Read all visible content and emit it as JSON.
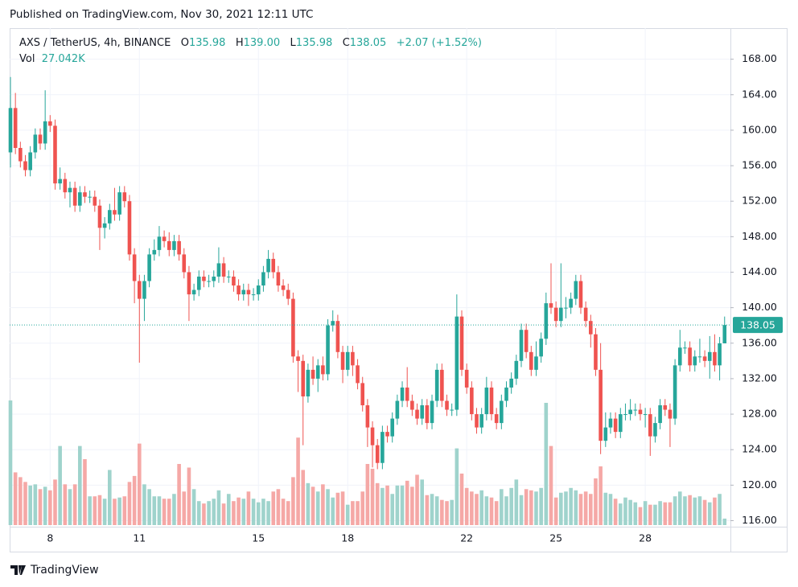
{
  "chart_data": {
    "type": "candlestick",
    "published": "Published on TradingView.com, Nov 30, 2021 12:11 UTC",
    "symbol": "AXS / TetherUS, 4h, BINANCE",
    "ohlc_prefixes": [
      "O",
      "H",
      "L",
      "C"
    ],
    "legend_values": [
      "135.98",
      "139.00",
      "135.98",
      "138.05"
    ],
    "change": "+2.07 (+1.52%)",
    "volume_title": "Vol",
    "volume_label": "27.042K",
    "logo": "TradingView",
    "up_color": "#26a69a",
    "down_color": "#ef5350",
    "volume_up_color": "#9fd3cc",
    "volume_down_color": "#f5a8a6",
    "grid": true,
    "ylim": [
      115.5,
      171.5
    ],
    "yticks": [
      {
        "value": 116,
        "label": "116.00"
      },
      {
        "value": 120,
        "label": "120.00"
      },
      {
        "value": 124,
        "label": "124.00"
      },
      {
        "value": 128,
        "label": "128.00"
      },
      {
        "value": 132,
        "label": "132.00"
      },
      {
        "value": 136,
        "label": "136.00"
      },
      {
        "value": 140,
        "label": "140.00"
      },
      {
        "value": 144,
        "label": "144.00"
      },
      {
        "value": 148,
        "label": "148.00"
      },
      {
        "value": 152,
        "label": "152.00"
      },
      {
        "value": 156,
        "label": "156.00"
      },
      {
        "value": 160,
        "label": "160.00"
      },
      {
        "value": 164,
        "label": "164.00"
      },
      {
        "value": 168,
        "label": "168.00"
      }
    ],
    "categories": [
      null,
      null,
      null,
      null,
      null,
      null,
      null,
      null,
      "8",
      null,
      null,
      null,
      null,
      null,
      null,
      null,
      null,
      null,
      null,
      null,
      null,
      null,
      null,
      null,
      null,
      null,
      "11",
      null,
      null,
      null,
      null,
      null,
      null,
      null,
      null,
      null,
      null,
      null,
      null,
      null,
      null,
      null,
      null,
      null,
      null,
      null,
      null,
      null,
      null,
      null,
      "15",
      null,
      null,
      null,
      null,
      null,
      null,
      null,
      null,
      null,
      null,
      null,
      null,
      null,
      null,
      null,
      null,
      null,
      "18",
      null,
      null,
      null,
      null,
      null,
      null,
      null,
      null,
      null,
      null,
      null,
      null,
      null,
      null,
      null,
      null,
      null,
      null,
      null,
      null,
      null,
      null,
      null,
      "22",
      null,
      null,
      null,
      null,
      null,
      null,
      null,
      null,
      null,
      null,
      null,
      null,
      null,
      null,
      null,
      null,
      null,
      "25",
      null,
      null,
      null,
      null,
      null,
      null,
      null,
      null,
      null,
      null,
      null,
      null,
      null,
      null,
      null,
      null,
      null,
      "28",
      null,
      null,
      null,
      null,
      null,
      null,
      null,
      null,
      null,
      null,
      null,
      null,
      null,
      null,
      null,
      null
    ],
    "open": [
      157.5,
      162.5,
      158,
      156.5,
      155.5,
      157.5,
      159.5,
      158.5,
      161,
      160.5,
      154,
      154.5,
      153,
      153.5,
      151.5,
      153,
      152.5,
      152.5,
      151.5,
      149,
      149.5,
      151,
      150.5,
      153,
      152,
      146,
      143,
      141,
      143,
      146,
      146.5,
      148,
      147.5,
      146.5,
      147.5,
      146,
      144,
      141.5,
      142,
      143.5,
      143,
      143,
      143.5,
      145,
      143.5,
      143.5,
      142.5,
      141.5,
      142,
      141.5,
      141.5,
      142.5,
      144,
      145.5,
      144,
      142.5,
      142,
      141,
      134.5,
      134,
      130,
      133,
      132,
      133.5,
      132.5,
      138,
      138.5,
      135,
      133,
      135,
      133.5,
      131.5,
      129,
      126.5,
      124.5,
      122.5,
      126,
      125.5,
      127.5,
      129.5,
      131,
      129.5,
      128.5,
      127.5,
      129,
      127,
      129.5,
      133,
      129.5,
      128.5,
      128.5,
      139,
      133,
      131,
      128,
      126.5,
      128,
      131,
      128,
      127,
      129.5,
      131,
      132,
      134,
      137.5,
      135,
      133,
      134.5,
      136.5,
      140.5,
      140,
      138.5,
      140,
      140,
      141,
      143,
      140,
      138.5,
      137,
      133,
      125,
      126.5,
      127.5,
      126,
      128,
      128,
      128.5,
      128.5,
      128,
      128,
      125.5,
      127,
      129,
      128.5,
      127.5,
      133.5,
      135.5,
      135.5,
      133.5,
      134.5,
      134.5,
      134,
      135,
      133.5,
      135.98
    ],
    "high": [
      166,
      164.2,
      158.7,
      157.2,
      158.2,
      160.2,
      160.2,
      164.5,
      161.7,
      161.2,
      155.8,
      155.2,
      154.2,
      154.2,
      153.7,
      153.7,
      153.2,
      153.2,
      152.2,
      150.2,
      151.7,
      153.5,
      153.7,
      153.7,
      152.7,
      146.7,
      143.7,
      143.7,
      146.7,
      147.7,
      149.2,
      148.7,
      148.5,
      148.2,
      148.2,
      146.7,
      144.7,
      142.7,
      144.2,
      144.2,
      143.7,
      144.2,
      146.8,
      145.7,
      144.2,
      144.2,
      143.2,
      142.7,
      142.7,
      142.2,
      143.2,
      144.7,
      146.5,
      146.2,
      144.7,
      143.2,
      142.7,
      141.7,
      135.2,
      134.7,
      133.7,
      134.5,
      134.2,
      134.5,
      138.7,
      139.7,
      139.2,
      135.7,
      135.7,
      135.7,
      134.2,
      132.2,
      129.7,
      127.2,
      125.2,
      126.7,
      126.7,
      128.2,
      130.2,
      131.7,
      133.3,
      130.2,
      129.2,
      129.7,
      129.7,
      130.2,
      133.7,
      133.7,
      130.2,
      129.2,
      141.5,
      139.7,
      133.7,
      131.7,
      128.7,
      128.7,
      132.2,
      131.7,
      128.7,
      130.2,
      131.7,
      132.7,
      134.7,
      138.2,
      138.2,
      135.7,
      136.2,
      137.2,
      141.7,
      145,
      140.7,
      145,
      141.2,
      141.7,
      143.7,
      143.7,
      140.7,
      139.2,
      137.7,
      136,
      128.2,
      128.2,
      128.2,
      128.7,
      129.2,
      129.7,
      129.2,
      129.2,
      128.7,
      128.7,
      127.7,
      129.7,
      129.7,
      129.2,
      134.2,
      137.5,
      136.2,
      136.2,
      135.2,
      136.5,
      135.2,
      136.8,
      137,
      136.7,
      139
    ],
    "low": [
      155.8,
      157.3,
      155.8,
      154.8,
      154.8,
      156.8,
      157.8,
      157.8,
      159.8,
      153.3,
      153.3,
      152.3,
      151.3,
      150.8,
      150.8,
      151.8,
      151.8,
      150.8,
      146.5,
      147.8,
      148.8,
      149.8,
      149.8,
      151.3,
      145.3,
      140.5,
      133.8,
      138.5,
      142.3,
      145.3,
      145.8,
      146.8,
      145.8,
      145.8,
      145.3,
      143.3,
      138.5,
      140.8,
      141.3,
      142.3,
      142.3,
      142.3,
      142.8,
      142.8,
      142.8,
      141.8,
      140.8,
      140.8,
      140.2,
      140.8,
      140.8,
      141.8,
      143.3,
      143.3,
      141.8,
      141.3,
      140.3,
      133.8,
      130.5,
      124.5,
      129.3,
      131.3,
      130.5,
      131.8,
      131.8,
      137.3,
      134.3,
      131.5,
      132.3,
      132.3,
      130.8,
      128.3,
      124.3,
      122,
      121.8,
      121.8,
      124.8,
      124.8,
      126.8,
      128.8,
      128.8,
      127.8,
      126.8,
      126.8,
      126.3,
      126.3,
      128.8,
      128.8,
      127.8,
      127.8,
      127.8,
      132.3,
      130.3,
      127.3,
      125.8,
      125.8,
      127.3,
      127.3,
      126.3,
      126.3,
      128.8,
      130.3,
      131.3,
      133.3,
      134.3,
      132.3,
      132.3,
      133.8,
      135.8,
      139.3,
      137.8,
      137.8,
      138.8,
      139.3,
      140.3,
      139.3,
      137.8,
      135.5,
      132.3,
      123.5,
      124.3,
      125.8,
      125.3,
      125.3,
      127.3,
      127.3,
      127.8,
      127.3,
      126.5,
      123.3,
      124.8,
      126.3,
      127.8,
      124.3,
      126.8,
      132.8,
      134.8,
      132.8,
      132.8,
      133.8,
      133.3,
      132,
      132.8,
      131.8,
      135.98
    ],
    "close": [
      162.5,
      158,
      156.5,
      155.5,
      157.5,
      159.5,
      158.5,
      161,
      160.5,
      154,
      154.5,
      153,
      153.5,
      151.5,
      153,
      152.5,
      152.5,
      151.5,
      149,
      149.5,
      151,
      150.5,
      153,
      152,
      146,
      143,
      141,
      143,
      146,
      146.5,
      148,
      147.5,
      146.5,
      147.5,
      146,
      144,
      141.5,
      142,
      143.5,
      143,
      143,
      143.5,
      145,
      143.5,
      143.5,
      142.5,
      141.5,
      142,
      141.5,
      141.5,
      142.5,
      144,
      145.5,
      144,
      142.5,
      142,
      141,
      134.5,
      134,
      130,
      133,
      132,
      133.5,
      132.5,
      138,
      138.5,
      135,
      133,
      135,
      133.5,
      131.5,
      129,
      126.5,
      124.5,
      122.5,
      126,
      125.5,
      127.5,
      129.5,
      131,
      129.5,
      128.5,
      127.5,
      129,
      127,
      129.5,
      133,
      129.5,
      128.5,
      128.5,
      139,
      133,
      131,
      128,
      126.5,
      128,
      131,
      128,
      127,
      129.5,
      131,
      132,
      134,
      137.5,
      135,
      133,
      134.5,
      136.5,
      140.5,
      140,
      138.5,
      140,
      140,
      141,
      143,
      140,
      138.5,
      137,
      133,
      125,
      126.5,
      127.5,
      126,
      128,
      128,
      128.5,
      128.5,
      128,
      128,
      125.5,
      127,
      129,
      128.5,
      127.5,
      133.5,
      135.5,
      135.5,
      133.5,
      134.5,
      134.5,
      134,
      135,
      133.5,
      135.98,
      138.05
    ],
    "volume": [
      520,
      220,
      200,
      180,
      165,
      170,
      150,
      160,
      145,
      190,
      330,
      170,
      150,
      170,
      330,
      275,
      120,
      120,
      125,
      110,
      230,
      110,
      115,
      120,
      180,
      205,
      340,
      170,
      150,
      120,
      120,
      110,
      110,
      130,
      255,
      140,
      240,
      150,
      100,
      90,
      100,
      110,
      145,
      90,
      130,
      100,
      115,
      110,
      140,
      110,
      95,
      110,
      100,
      140,
      150,
      110,
      100,
      200,
      365,
      230,
      175,
      160,
      140,
      170,
      150,
      115,
      135,
      140,
      85,
      100,
      100,
      140,
      255,
      235,
      175,
      155,
      165,
      130,
      165,
      165,
      185,
      160,
      210,
      190,
      125,
      130,
      120,
      105,
      100,
      105,
      320,
      215,
      155,
      140,
      130,
      145,
      120,
      115,
      100,
      150,
      120,
      155,
      190,
      125,
      150,
      145,
      140,
      155,
      510,
      330,
      115,
      135,
      140,
      155,
      145,
      130,
      140,
      130,
      195,
      245,
      135,
      130,
      110,
      90,
      115,
      105,
      95,
      75,
      100,
      85,
      85,
      100,
      95,
      95,
      120,
      140,
      120,
      125,
      115,
      120,
      105,
      95,
      115,
      130,
      27.042
    ]
  }
}
